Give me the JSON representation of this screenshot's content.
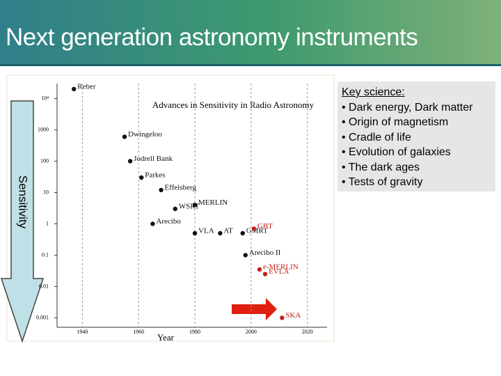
{
  "title": "Next generation astronomy instruments",
  "key_science": {
    "heading": "Key science:",
    "items": [
      "Dark energy, Dark matter",
      "Origin of magnetism",
      "Cradle of life",
      "Evolution of galaxies",
      "The dark ages",
      "Tests of gravity"
    ]
  },
  "sensitivity_label": "Sensitivity",
  "chart_data": {
    "type": "scatter",
    "title": "Advances in Sensitivity in Radio Astronomy",
    "x_label": "Year",
    "labels": [
      "Reber",
      "Dwingeloo",
      "Jodrell Bank",
      "Parkes",
      "Effelsberg",
      "WSRT",
      "Arecibo",
      "MERLIN",
      "VLA",
      "AT",
      "GMRT",
      "GBT",
      "Arecibo II",
      "e-MERLIN",
      "EVLA",
      "SKA"
    ],
    "x": [
      1937,
      1955,
      1957,
      1961,
      1968,
      1973,
      1965,
      1980,
      1980,
      1989,
      1997,
      2001,
      1998,
      2003,
      2005,
      2011
    ],
    "values": [
      20000,
      600,
      100,
      30,
      12,
      3,
      1,
      4,
      0.5,
      0.5,
      0.5,
      0.7,
      0.1,
      0.035,
      0.025,
      0.001
    ],
    "colors": [
      "#111",
      "#111",
      "#111",
      "#111",
      "#111",
      "#111",
      "#111",
      "#111",
      "#111",
      "#111",
      "#111",
      "#c0201c",
      "#111",
      "#c0201c",
      "#c0201c",
      "#c0201c"
    ],
    "xlim": [
      1931,
      2027
    ],
    "ylim": [
      0.0005,
      30000
    ],
    "log_y": true,
    "grid": true,
    "xticks": [
      1940,
      1960,
      1980,
      2000,
      2020
    ],
    "yticks": [
      {
        "value": 10000,
        "label": "10⁴"
      },
      1000,
      100,
      10,
      1,
      0.1,
      0.01,
      0.001
    ]
  }
}
